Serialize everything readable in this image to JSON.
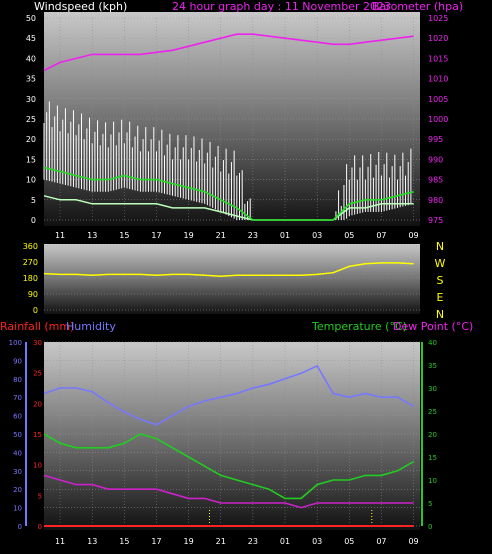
{
  "header": {
    "left": "Windspeed (kph)",
    "center": "24 hour graph day : 11 November 2023",
    "right": "Barometer (hpa)"
  },
  "labels": {
    "rainfall": "Rainfall (mm)",
    "humidity": "Humidity",
    "temperature": "Temperature (°C)",
    "dewpoint": "Dew Point (°C)"
  },
  "colors": {
    "wind_avg": "#22dd22",
    "wind_gust": "#ffffff",
    "wind_light": "#bbffbb",
    "barometer": "#ee22ee",
    "direction": "#ffff00",
    "rainfall": "#ff2222",
    "humidity": "#7777ff",
    "temperature": "#22cc22",
    "dewpoint": "#cc22cc"
  },
  "chart_data": [
    {
      "type": "line",
      "name": "wind-barometer",
      "x_tick_labels": [
        "11",
        "13",
        "15",
        "17",
        "19",
        "21",
        "23",
        "01",
        "03",
        "05",
        "07",
        "09"
      ],
      "y_left_ticks": [
        0,
        5,
        10,
        15,
        20,
        25,
        30,
        35,
        40,
        45,
        50
      ],
      "y_right_ticks": [
        975,
        980,
        985,
        990,
        995,
        1000,
        1005,
        1010,
        1015,
        1020,
        1025
      ],
      "ylim_left": [
        0,
        50
      ],
      "ylim_right": [
        975,
        1025
      ],
      "x": [
        10,
        11,
        12,
        13,
        14,
        15,
        16,
        17,
        18,
        19,
        20,
        21,
        22,
        23,
        24,
        25,
        26,
        27,
        28,
        29,
        30,
        31,
        32,
        33
      ],
      "series": [
        {
          "key": "gust",
          "values": [
            27,
            25,
            24,
            22,
            21,
            22,
            20,
            20,
            18,
            18,
            17,
            15,
            14,
            0,
            0,
            0,
            0,
            0,
            0,
            13,
            13,
            14,
            13,
            15
          ]
        },
        {
          "key": "avg",
          "values": [
            13,
            12,
            11,
            10,
            10,
            11,
            10,
            10,
            9,
            8,
            7,
            5,
            3,
            0,
            0,
            0,
            0,
            0,
            0,
            4,
            5,
            5,
            6,
            7
          ]
        },
        {
          "key": "light",
          "values": [
            6,
            5,
            5,
            4,
            4,
            4,
            4,
            4,
            3,
            3,
            3,
            2,
            1,
            0,
            0,
            0,
            0,
            0,
            0,
            3,
            3,
            4,
            4,
            4
          ]
        },
        {
          "key": "barometer",
          "values": [
            1012,
            1014,
            1015,
            1016,
            1016,
            1016,
            1016,
            1016.5,
            1017,
            1018,
            1019,
            1020,
            1021,
            1021,
            1020.5,
            1020,
            1019.5,
            1019,
            1018.5,
            1018.5,
            1019,
            1019.5,
            1020,
            1020.5
          ]
        }
      ]
    },
    {
      "type": "line",
      "name": "wind-direction",
      "y_left_ticks": [
        0,
        90,
        180,
        270,
        360
      ],
      "ylim": [
        0,
        360
      ],
      "compass": [
        "N",
        "W",
        "S",
        "E",
        "N"
      ],
      "x": [
        10,
        11,
        12,
        13,
        14,
        15,
        16,
        17,
        18,
        19,
        20,
        21,
        22,
        23,
        24,
        25,
        26,
        27,
        28,
        29,
        30,
        31,
        32,
        33
      ],
      "values": [
        205,
        200,
        200,
        195,
        200,
        200,
        200,
        195,
        200,
        200,
        195,
        190,
        195,
        195,
        195,
        195,
        195,
        200,
        210,
        245,
        260,
        265,
        265,
        260
      ]
    },
    {
      "type": "line",
      "name": "rain-humidity-temperature",
      "x_tick_labels": [
        "11",
        "13",
        "15",
        "17",
        "19",
        "21",
        "23",
        "01",
        "03",
        "05",
        "07",
        "09"
      ],
      "humidity_ticks": [
        0,
        10,
        20,
        30,
        40,
        50,
        60,
        70,
        80,
        90,
        100
      ],
      "rain_ticks": [
        0,
        5,
        10,
        15,
        20,
        25,
        30
      ],
      "temp_ticks": [
        0,
        5,
        10,
        15,
        20,
        25,
        30,
        35,
        40
      ],
      "ylim_humidity": [
        0,
        100
      ],
      "ylim_rain": [
        0,
        30
      ],
      "ylim_temperature": [
        0,
        40
      ],
      "x": [
        10,
        11,
        12,
        13,
        14,
        15,
        16,
        17,
        18,
        19,
        20,
        21,
        22,
        23,
        24,
        25,
        26,
        27,
        28,
        29,
        30,
        31,
        32,
        33
      ],
      "series": [
        {
          "key": "humidity",
          "values": [
            72,
            75,
            75,
            73,
            67,
            62,
            58,
            55,
            60,
            65,
            68,
            70,
            72,
            75,
            77,
            80,
            83,
            87,
            72,
            70,
            72,
            70,
            70,
            65
          ]
        },
        {
          "key": "temperature",
          "values": [
            20,
            18,
            17,
            17,
            17,
            18,
            20,
            19,
            17,
            15,
            13,
            11,
            10,
            9,
            8,
            6,
            6,
            9,
            10,
            10,
            11,
            11,
            12,
            14
          ]
        },
        {
          "key": "dewpoint",
          "values": [
            11,
            10,
            9,
            9,
            8,
            8,
            8,
            8,
            7,
            6,
            6,
            5,
            5,
            5,
            5,
            5,
            4,
            5,
            5,
            5,
            5,
            5,
            5,
            5
          ]
        },
        {
          "key": "rainfall",
          "values": [
            0,
            0,
            0,
            0,
            0,
            0,
            0,
            0,
            0,
            0,
            0,
            0,
            0,
            0,
            0,
            0,
            0,
            0,
            0,
            0,
            0,
            0,
            0,
            0
          ]
        }
      ]
    }
  ]
}
